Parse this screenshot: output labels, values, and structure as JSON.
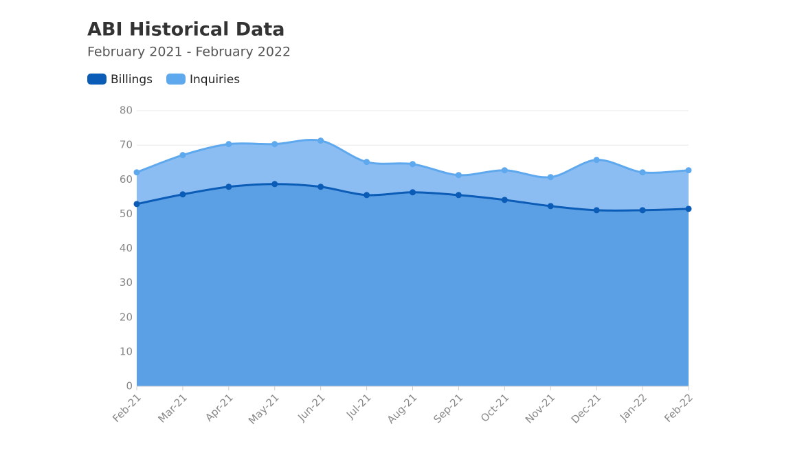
{
  "chart_data": {
    "type": "area",
    "title": "ABI Historical Data",
    "subtitle": "February 2021 - February 2022",
    "categories": [
      "Feb-21",
      "Mar-21",
      "Apr-21",
      "May-21",
      "Jun-21",
      "Jul-21",
      "Aug-21",
      "Sep-21",
      "Oct-21",
      "Nov-21",
      "Dec-21",
      "Jan-22",
      "Feb-22"
    ],
    "series": [
      {
        "name": "Billings",
        "color": "#0b5cb6",
        "fill": "#5b9fe4",
        "values": [
          52.9,
          55.7,
          57.9,
          58.7,
          57.9,
          55.5,
          56.3,
          55.5,
          54.1,
          52.3,
          51.1,
          51.1,
          51.5
        ]
      },
      {
        "name": "Inquiries",
        "color": "#5ea8ee",
        "fill": "#8cbdf2",
        "values": [
          62.1,
          67.1,
          70.3,
          70.3,
          71.3,
          65.1,
          64.5,
          61.3,
          62.7,
          60.7,
          65.7,
          62.1,
          62.7
        ]
      }
    ],
    "ylim": [
      0,
      80
    ],
    "yticks": [
      0,
      10,
      20,
      30,
      40,
      50,
      60,
      70,
      80
    ],
    "grid": true,
    "legend": "top-left"
  }
}
